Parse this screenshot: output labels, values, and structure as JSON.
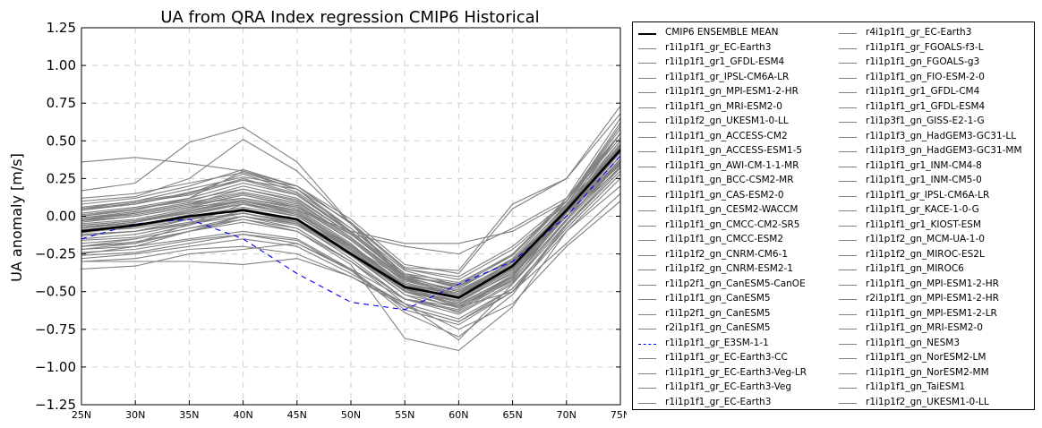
{
  "chart_data": {
    "type": "line",
    "title": "UA from QRA Index regression CMIP6 Historical",
    "xlabel": "",
    "ylabel": "UA anomaly [m/s]",
    "categories": [
      "25N",
      "30N",
      "35N",
      "40N",
      "45N",
      "50N",
      "55N",
      "60N",
      "65N",
      "70N",
      "75N"
    ],
    "ylim": [
      -1.25,
      1.25
    ],
    "yticks": [
      "−1.25",
      "−1.00",
      "−0.75",
      "−0.50",
      "−0.25",
      "0.00",
      "0.25",
      "0.50",
      "0.75",
      "1.00",
      "1.25"
    ],
    "grid": true,
    "legend_placement": "outside-right",
    "colors": {
      "ensemble": "#000000",
      "model": "#808080",
      "highlight": "#0000ff"
    },
    "ensemble": {
      "name": "CMIP6 ENSEMBLE MEAN",
      "values": [
        -0.1,
        -0.06,
        0.0,
        0.04,
        -0.02,
        -0.25,
        -0.47,
        -0.54,
        -0.33,
        0.04,
        0.44
      ]
    },
    "series": [
      {
        "name": "r1i1p1f1_gr_EC-Earth3",
        "values": [
          -0.08,
          -0.05,
          -0.02,
          0.02,
          -0.05,
          -0.2,
          -0.45,
          -0.52,
          -0.3,
          0.05,
          0.48
        ]
      },
      {
        "name": "r1i1p1f1_gr1_GFDL-ESM4",
        "values": [
          0.36,
          0.39,
          0.35,
          0.3,
          0.18,
          -0.1,
          -0.4,
          -0.46,
          -0.3,
          0.05,
          0.55
        ]
      },
      {
        "name": "r1i1p1f1_gr_IPSL-CM6A-LR",
        "values": [
          -0.2,
          -0.18,
          -0.05,
          0.08,
          0.02,
          -0.2,
          -0.42,
          -0.5,
          -0.35,
          0.0,
          0.4
        ]
      },
      {
        "name": "r1i1p1f1_gn_MPI-ESM1-2-HR",
        "values": [
          -0.05,
          -0.02,
          0.05,
          0.12,
          0.05,
          -0.18,
          -0.48,
          -0.6,
          -0.4,
          0.05,
          0.35
        ]
      },
      {
        "name": "r1i1p1f1_gn_MRI-ESM2-0",
        "values": [
          0.05,
          0.1,
          0.15,
          0.25,
          0.15,
          -0.1,
          -0.4,
          -0.55,
          -0.35,
          0.02,
          0.42
        ]
      },
      {
        "name": "r1i1p1f2_gn_UKESM1-0-LL",
        "values": [
          -0.25,
          -0.2,
          -0.1,
          0.0,
          -0.08,
          -0.3,
          -0.55,
          -0.65,
          -0.45,
          -0.05,
          0.3
        ]
      },
      {
        "name": "r1i1p1f1_gn_ACCESS-CM2",
        "values": [
          -0.12,
          -0.1,
          -0.02,
          0.05,
          -0.02,
          -0.22,
          -0.5,
          -0.58,
          -0.4,
          0.02,
          0.4
        ]
      },
      {
        "name": "r1i1p1f1_gn_ACCESS-ESM1-5",
        "values": [
          0.17,
          0.22,
          0.49,
          0.59,
          0.36,
          -0.05,
          -0.4,
          -0.45,
          -0.25,
          0.1,
          0.55
        ]
      },
      {
        "name": "r1i1p1f1_gn_AWI-CM-1-1-MR",
        "values": [
          -0.08,
          -0.04,
          0.04,
          0.1,
          0.02,
          -0.2,
          -0.45,
          -0.55,
          -0.35,
          0.05,
          0.45
        ]
      },
      {
        "name": "r1i1p1f1_gn_BCC-CSM2-MR",
        "values": [
          -0.15,
          -0.12,
          -0.05,
          0.02,
          -0.05,
          -0.25,
          -0.5,
          -0.56,
          -0.38,
          0.0,
          0.38
        ]
      },
      {
        "name": "r1i1p1f1_gn_CAS-ESM2-0",
        "values": [
          0.08,
          0.12,
          0.2,
          0.31,
          0.2,
          -0.05,
          -0.35,
          -0.4,
          -0.2,
          0.1,
          0.6
        ]
      },
      {
        "name": "r1i1p1f1_gn_CESM2-WACCM",
        "values": [
          -0.02,
          0.02,
          0.08,
          0.15,
          0.08,
          -0.15,
          -0.42,
          -0.5,
          -0.32,
          0.05,
          0.45
        ]
      },
      {
        "name": "r1i1p1f1_gn_CMCC-CM2-SR5",
        "values": [
          -0.2,
          -0.15,
          -0.08,
          0.0,
          -0.05,
          -0.28,
          -0.55,
          -0.63,
          -0.42,
          -0.02,
          0.35
        ]
      },
      {
        "name": "r1i1p1f1_gn_CMCC-ESM2",
        "values": [
          -0.22,
          -0.18,
          -0.1,
          -0.02,
          -0.08,
          -0.3,
          -0.55,
          -0.62,
          -0.4,
          0.0,
          0.32
        ]
      },
      {
        "name": "r1i1p1f2_gn_CNRM-CM6-1",
        "values": [
          -0.3,
          -0.28,
          -0.22,
          -0.2,
          -0.25,
          -0.4,
          -0.6,
          -0.7,
          -0.5,
          -0.1,
          0.25
        ]
      },
      {
        "name": "r1i1p1f2_gn_CNRM-ESM2-1",
        "values": [
          -0.28,
          -0.25,
          -0.2,
          -0.15,
          -0.2,
          -0.38,
          -0.58,
          -0.68,
          -0.48,
          -0.08,
          0.28
        ]
      },
      {
        "name": "r1i1p2f1_gn_CanESM5-CanOE",
        "values": [
          0.0,
          0.05,
          0.1,
          0.2,
          0.12,
          -0.12,
          -0.4,
          -0.5,
          -0.3,
          0.08,
          0.5
        ]
      },
      {
        "name": "r1i1p1f1_gn_CanESM5",
        "values": [
          0.02,
          0.06,
          0.12,
          0.22,
          0.14,
          -0.1,
          -0.38,
          -0.48,
          -0.28,
          0.1,
          0.52
        ]
      },
      {
        "name": "r1i1p2f1_gn_CanESM5",
        "values": [
          -0.03,
          0.02,
          0.08,
          0.18,
          0.1,
          -0.14,
          -0.42,
          -0.52,
          -0.32,
          0.06,
          0.48
        ]
      },
      {
        "name": "r2i1p1f1_gn_CanESM5",
        "values": [
          0.05,
          0.08,
          0.15,
          0.28,
          0.16,
          -0.08,
          -0.36,
          -0.46,
          -0.26,
          0.12,
          0.55
        ]
      },
      {
        "name": "r1i1p1f1_gr_E3SM-1-1",
        "values": [
          -0.15,
          -0.05,
          -0.02,
          -0.15,
          -0.38,
          -0.57,
          -0.62,
          -0.45,
          -0.3,
          0.0,
          0.4
        ],
        "highlight": true
      },
      {
        "name": "r1i1p1f1_gr_EC-Earth3-CC",
        "values": [
          -0.06,
          -0.03,
          0.02,
          0.08,
          0.0,
          -0.2,
          -0.46,
          -0.54,
          -0.34,
          0.04,
          0.46
        ]
      },
      {
        "name": "r1i1p1f1_gr_EC-Earth3-Veg-LR",
        "values": [
          -0.1,
          -0.08,
          -0.02,
          0.05,
          -0.02,
          -0.22,
          -0.48,
          -0.56,
          -0.36,
          0.03,
          0.44
        ]
      },
      {
        "name": "r1i1p1f1_gr_EC-Earth3-Veg",
        "values": [
          -0.09,
          -0.06,
          0.0,
          0.06,
          0.0,
          -0.21,
          -0.47,
          -0.55,
          -0.35,
          0.04,
          0.45
        ]
      },
      {
        "name": "r1i1p1f1_gr_EC-Earth3",
        "values": [
          -0.07,
          -0.04,
          0.02,
          0.09,
          0.01,
          -0.19,
          -0.45,
          -0.53,
          -0.33,
          0.05,
          0.47
        ]
      },
      {
        "name": "r4i1p1f1_gr_EC-Earth3",
        "values": [
          -0.11,
          -0.07,
          -0.01,
          0.04,
          -0.03,
          -0.23,
          -0.49,
          -0.57,
          -0.37,
          0.02,
          0.43
        ]
      },
      {
        "name": "r1i1p1f1_gr_FGOALS-f3-L",
        "values": [
          -0.35,
          -0.33,
          -0.25,
          -0.22,
          -0.18,
          -0.35,
          -0.55,
          -0.6,
          -0.5,
          -0.18,
          0.15
        ]
      },
      {
        "name": "r1i1p1f1_gn_FGOALS-g3",
        "values": [
          -0.3,
          -0.3,
          -0.3,
          -0.32,
          -0.28,
          -0.4,
          -0.58,
          -0.75,
          -0.58,
          -0.2,
          0.1
        ]
      },
      {
        "name": "r1i1p1f1_gn_FIO-ESM-2-0",
        "values": [
          0.1,
          0.13,
          0.25,
          0.51,
          0.3,
          -0.05,
          -0.42,
          -0.52,
          -0.3,
          0.05,
          0.5
        ]
      },
      {
        "name": "r1i1p1f1_gr1_GFDL-CM4",
        "values": [
          -0.04,
          0.0,
          0.06,
          0.14,
          0.06,
          -0.16,
          -0.44,
          -0.52,
          -0.34,
          0.05,
          0.45
        ]
      },
      {
        "name": "r1i1p1f1_gr1_GFDL-ESM4",
        "values": [
          0.12,
          0.15,
          0.22,
          0.29,
          0.18,
          -0.08,
          -0.38,
          -0.44,
          -0.26,
          0.1,
          0.58
        ]
      },
      {
        "name": "r1i1p3f1_gn_GISS-E2-1-G",
        "values": [
          -0.18,
          -0.15,
          -0.08,
          -0.02,
          -0.1,
          -0.32,
          -0.81,
          -0.89,
          -0.6,
          -0.1,
          0.2
        ]
      },
      {
        "name": "r1i1p1f3_gn_HadGEM3-GC31-LL",
        "values": [
          -0.22,
          -0.2,
          -0.15,
          -0.1,
          -0.15,
          -0.35,
          -0.62,
          -0.72,
          -0.5,
          -0.05,
          0.32
        ]
      },
      {
        "name": "r1i1p1f3_gn_HadGEM3-GC31-MM",
        "values": [
          -0.24,
          -0.22,
          -0.16,
          -0.12,
          -0.16,
          -0.36,
          -0.64,
          -0.8,
          -0.52,
          -0.06,
          0.3
        ]
      },
      {
        "name": "r1i1p1f1_gr1_INM-CM4-8",
        "values": [
          -0.03,
          0.0,
          0.06,
          0.1,
          0.04,
          -0.1,
          -0.18,
          -0.18,
          -0.1,
          0.1,
          0.62
        ]
      },
      {
        "name": "r1i1p1f1_gr1_INM-CM5-0",
        "values": [
          -0.01,
          0.02,
          0.08,
          0.12,
          0.06,
          -0.12,
          -0.2,
          -0.25,
          -0.08,
          0.12,
          0.65
        ]
      },
      {
        "name": "r1i1p1f1_gr_IPSL-CM6A-LR",
        "values": [
          -0.16,
          -0.14,
          -0.06,
          0.04,
          -0.04,
          -0.24,
          -0.5,
          -0.58,
          -0.4,
          0.0,
          0.38
        ]
      },
      {
        "name": "r1i1p1f1_gr_KACE-1-0-G",
        "values": [
          -0.2,
          -0.17,
          -0.1,
          -0.04,
          -0.1,
          -0.3,
          -0.58,
          -0.82,
          -0.45,
          -0.02,
          0.36
        ]
      },
      {
        "name": "r1i1p1f1_gr1_KIOST-ESM",
        "values": [
          0.0,
          0.04,
          0.12,
          0.3,
          0.2,
          -0.05,
          -0.35,
          -0.42,
          -0.22,
          0.08,
          0.55
        ]
      },
      {
        "name": "r1i1p1f2_gn_MCM-UA-1-0",
        "values": [
          -0.13,
          -0.1,
          -0.04,
          0.02,
          -0.04,
          -0.25,
          -0.52,
          -0.6,
          -0.42,
          -0.02,
          0.37
        ]
      },
      {
        "name": "r1i1p1f2_gn_MIROC-ES2L",
        "values": [
          0.06,
          0.1,
          0.18,
          0.26,
          0.2,
          -0.02,
          -0.32,
          -0.38,
          0.05,
          0.25,
          0.73
        ]
      },
      {
        "name": "r1i1p1f1_gn_MIROC6",
        "values": [
          0.04,
          0.08,
          0.16,
          0.24,
          0.18,
          -0.04,
          -0.34,
          -0.36,
          0.08,
          0.25,
          0.68
        ]
      },
      {
        "name": "r1i1p1f1_gn_MPI-ESM1-2-HR",
        "values": [
          -0.06,
          -0.03,
          0.04,
          0.11,
          0.04,
          -0.19,
          -0.47,
          -0.59,
          -0.39,
          0.04,
          0.36
        ]
      },
      {
        "name": "r2i1p1f1_gn_MPI-ESM1-2-HR",
        "values": [
          -0.07,
          -0.04,
          0.03,
          0.1,
          0.03,
          -0.2,
          -0.48,
          -0.6,
          -0.41,
          0.03,
          0.35
        ]
      },
      {
        "name": "r1i1p1f1_gn_MPI-ESM1-2-LR",
        "values": [
          -0.09,
          -0.06,
          0.01,
          0.08,
          0.0,
          -0.22,
          -0.5,
          -0.61,
          -0.43,
          0.02,
          0.34
        ]
      },
      {
        "name": "r1i1p1f1_gn_MRI-ESM2-0",
        "values": [
          0.04,
          0.09,
          0.14,
          0.24,
          0.14,
          -0.11,
          -0.41,
          -0.54,
          -0.34,
          0.03,
          0.43
        ]
      },
      {
        "name": "r1i1p1f1_gn_NESM3",
        "values": [
          -0.12,
          -0.1,
          -0.05,
          0.0,
          -0.06,
          -0.26,
          -0.52,
          -0.64,
          -0.44,
          -0.03,
          0.33
        ]
      },
      {
        "name": "r1i1p1f1_gn_NorESM2-LM",
        "values": [
          -0.01,
          0.03,
          0.09,
          0.16,
          0.09,
          -0.14,
          -0.41,
          -0.49,
          -0.31,
          0.06,
          0.46
        ]
      },
      {
        "name": "r1i1p1f1_gn_NorESM2-MM",
        "values": [
          0.01,
          0.05,
          0.11,
          0.18,
          0.11,
          -0.12,
          -0.39,
          -0.47,
          -0.29,
          0.07,
          0.47
        ]
      },
      {
        "name": "r1i1p1f1_gn_TaiESM1",
        "values": [
          -0.02,
          0.01,
          0.07,
          0.14,
          0.07,
          -0.16,
          -0.43,
          -0.51,
          -0.33,
          0.05,
          0.44
        ]
      },
      {
        "name": "r1i1p1f2_gn_UKESM1-0-LL",
        "values": [
          -0.26,
          -0.24,
          -0.18,
          -0.12,
          -0.18,
          -0.36,
          -0.6,
          -0.7,
          -0.48,
          -0.08,
          0.28
        ]
      }
    ]
  }
}
